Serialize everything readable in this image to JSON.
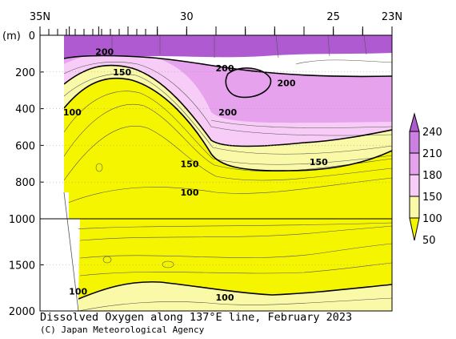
{
  "chart_data": {
    "type": "contour",
    "title": "Dissolved Oxygen along 137°E line, February 2023",
    "credit": "(C) Japan Meteorological Agency",
    "x_axis": {
      "range": [
        35,
        23
      ],
      "tick_labels": [
        {
          "value": 35,
          "label": "35N"
        },
        {
          "value": 30,
          "label": "30"
        },
        {
          "value": 25,
          "label": "25"
        },
        {
          "value": 23,
          "label": "23N"
        }
      ]
    },
    "y_axis": {
      "unit": "(m)",
      "upper_panel_range": [
        0,
        1000
      ],
      "lower_panel_range": [
        1000,
        2000
      ],
      "tick_labels": [
        "0",
        "200",
        "400",
        "600",
        "800",
        "1000",
        "1500",
        "2000"
      ]
    },
    "colorbar": {
      "levels": [
        50,
        100,
        150,
        180,
        210,
        240
      ],
      "labels": [
        "50",
        "100",
        "150",
        "180",
        "210",
        "240"
      ],
      "colors": [
        "#f5f500",
        "#f9f9a8",
        "#f7ccf7",
        "#e6a2ec",
        "#cc80e0",
        "#b05ad2"
      ]
    },
    "contour_labels": [
      {
        "text": "200",
        "lat": 32.8,
        "depth": 90
      },
      {
        "text": "150",
        "lat": 32.2,
        "depth": 200
      },
      {
        "text": "100",
        "lat": 33.9,
        "depth": 420
      },
      {
        "text": "200",
        "lat": 28.7,
        "depth": 180
      },
      {
        "text": "200",
        "lat": 26.6,
        "depth": 260
      },
      {
        "text": "200",
        "lat": 28.6,
        "depth": 420
      },
      {
        "text": "150",
        "lat": 29.9,
        "depth": 700
      },
      {
        "text": "150",
        "lat": 25.5,
        "depth": 690
      },
      {
        "text": "100",
        "lat": 29.9,
        "depth": 855
      },
      {
        "text": "100",
        "lat": 33.7,
        "depth": 1785
      },
      {
        "text": "100",
        "lat": 28.7,
        "depth": 1850
      }
    ]
  }
}
